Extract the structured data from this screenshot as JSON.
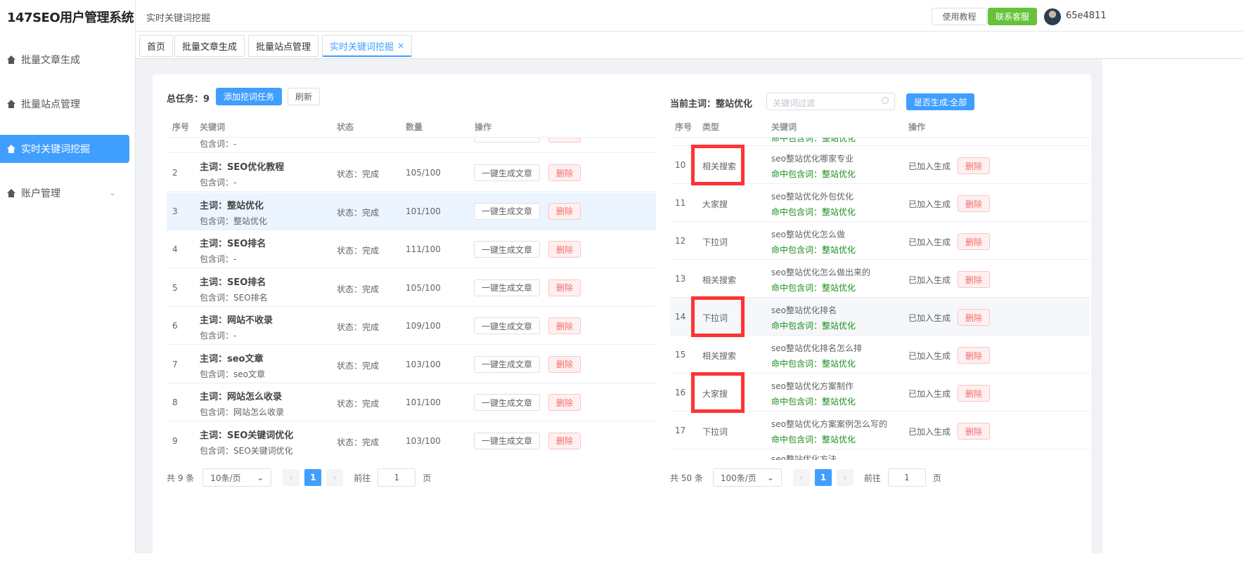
{
  "app": {
    "title": "147SEO用户管理系统"
  },
  "sidebar": {
    "items": [
      {
        "label": "批量文章生成"
      },
      {
        "label": "批量站点管理"
      },
      {
        "label": "实时关键词挖掘"
      },
      {
        "label": "账户管理"
      }
    ]
  },
  "header": {
    "title": "实时关键词挖掘",
    "tutorial": "使用教程",
    "support": "联系客服",
    "username": "65e4811"
  },
  "tabs": [
    {
      "label": "首页"
    },
    {
      "label": "批量文章生成"
    },
    {
      "label": "批量站点管理"
    },
    {
      "label": "实时关键词挖掘",
      "close": "×"
    }
  ],
  "left": {
    "total_label": "总任务：9",
    "add_button": "添加挖词任务",
    "refresh_button": "刷新",
    "columns": [
      "序号",
      "关键词",
      "状态",
      "数量",
      "操作"
    ],
    "partial_row": {
      "contains": "包含词：-"
    },
    "rows": [
      {
        "no": "2",
        "main": "主词：SEO优化教程",
        "contains": "包含词：-",
        "status": "状态：完成",
        "count": "105/100"
      },
      {
        "no": "3",
        "main": "主词：整站优化",
        "contains": "包含词：整站优化",
        "status": "状态：完成",
        "count": "101/100"
      },
      {
        "no": "4",
        "main": "主词：SEO排名",
        "contains": "包含词：-",
        "status": "状态：完成",
        "count": "111/100"
      },
      {
        "no": "5",
        "main": "主词：SEO排名",
        "contains": "包含词：SEO排名",
        "status": "状态：完成",
        "count": "105/100"
      },
      {
        "no": "6",
        "main": "主词：网站不收录",
        "contains": "包含词：-",
        "status": "状态：完成",
        "count": "109/100"
      },
      {
        "no": "7",
        "main": "主词：seo文章",
        "contains": "包含词：seo文章",
        "status": "状态：完成",
        "count": "103/100"
      },
      {
        "no": "8",
        "main": "主词：网站怎么收录",
        "contains": "包含词：网站怎么收录",
        "status": "状态：完成",
        "count": "101/100"
      },
      {
        "no": "9",
        "main": "主词：SEO关键词优化",
        "contains": "包含词：SEO关键词优化",
        "status": "状态：完成",
        "count": "103/100"
      }
    ],
    "generate_label": "一键生成文章",
    "delete_label": "删除",
    "pager": {
      "total": "共 9 条",
      "size": "10条/页",
      "page": "1",
      "goto": "前往",
      "goto_value": "1",
      "unit": "页"
    }
  },
  "right": {
    "current_label": "当前主词：整站优化",
    "filter_placeholder": "关键词过滤",
    "gen_filter": "是否生成:全部",
    "columns": [
      "序号",
      "类型",
      "关键词",
      "操作"
    ],
    "partial_top": "命中包含词：整站优化",
    "rows": [
      {
        "no": "10",
        "type": "相关搜索",
        "keyword": "seo整站优化哪家专业",
        "hit": "命中包含词：整站优化",
        "highlight": true
      },
      {
        "no": "11",
        "type": "大家搜",
        "keyword": "seo整站优化外包优化",
        "hit": "命中包含词：整站优化"
      },
      {
        "no": "12",
        "type": "下拉词",
        "keyword": "seo整站优化怎么做",
        "hit": "命中包含词：整站优化"
      },
      {
        "no": "13",
        "type": "相关搜索",
        "keyword": "seo整站优化怎么做出来的",
        "hit": "命中包含词：整站优化"
      },
      {
        "no": "14",
        "type": "下拉词",
        "keyword": "seo整站优化排名",
        "hit": "命中包含词：整站优化",
        "highlight": true
      },
      {
        "no": "15",
        "type": "相关搜索",
        "keyword": "seo整站优化排名怎么排",
        "hit": "命中包含词：整站优化"
      },
      {
        "no": "16",
        "type": "大家搜",
        "keyword": "seo整站优化方案制作",
        "hit": "命中包含词：整站优化",
        "highlight": true
      },
      {
        "no": "17",
        "type": "下拉词",
        "keyword": "seo整站优化方案案例怎么写的",
        "hit": "命中包含词：整站优化"
      }
    ],
    "partial_bottom": "seo整站优化方法",
    "added_label": "已加入生成",
    "delete_label": "删除",
    "pager": {
      "total": "共 50 条",
      "size": "100条/页",
      "page": "1",
      "goto": "前往",
      "goto_value": "1",
      "unit": "页"
    }
  },
  "colors": {
    "primary": "#409eff",
    "success": "#67c23a",
    "danger": "#f56c6c",
    "annotation": "#ff3333"
  }
}
